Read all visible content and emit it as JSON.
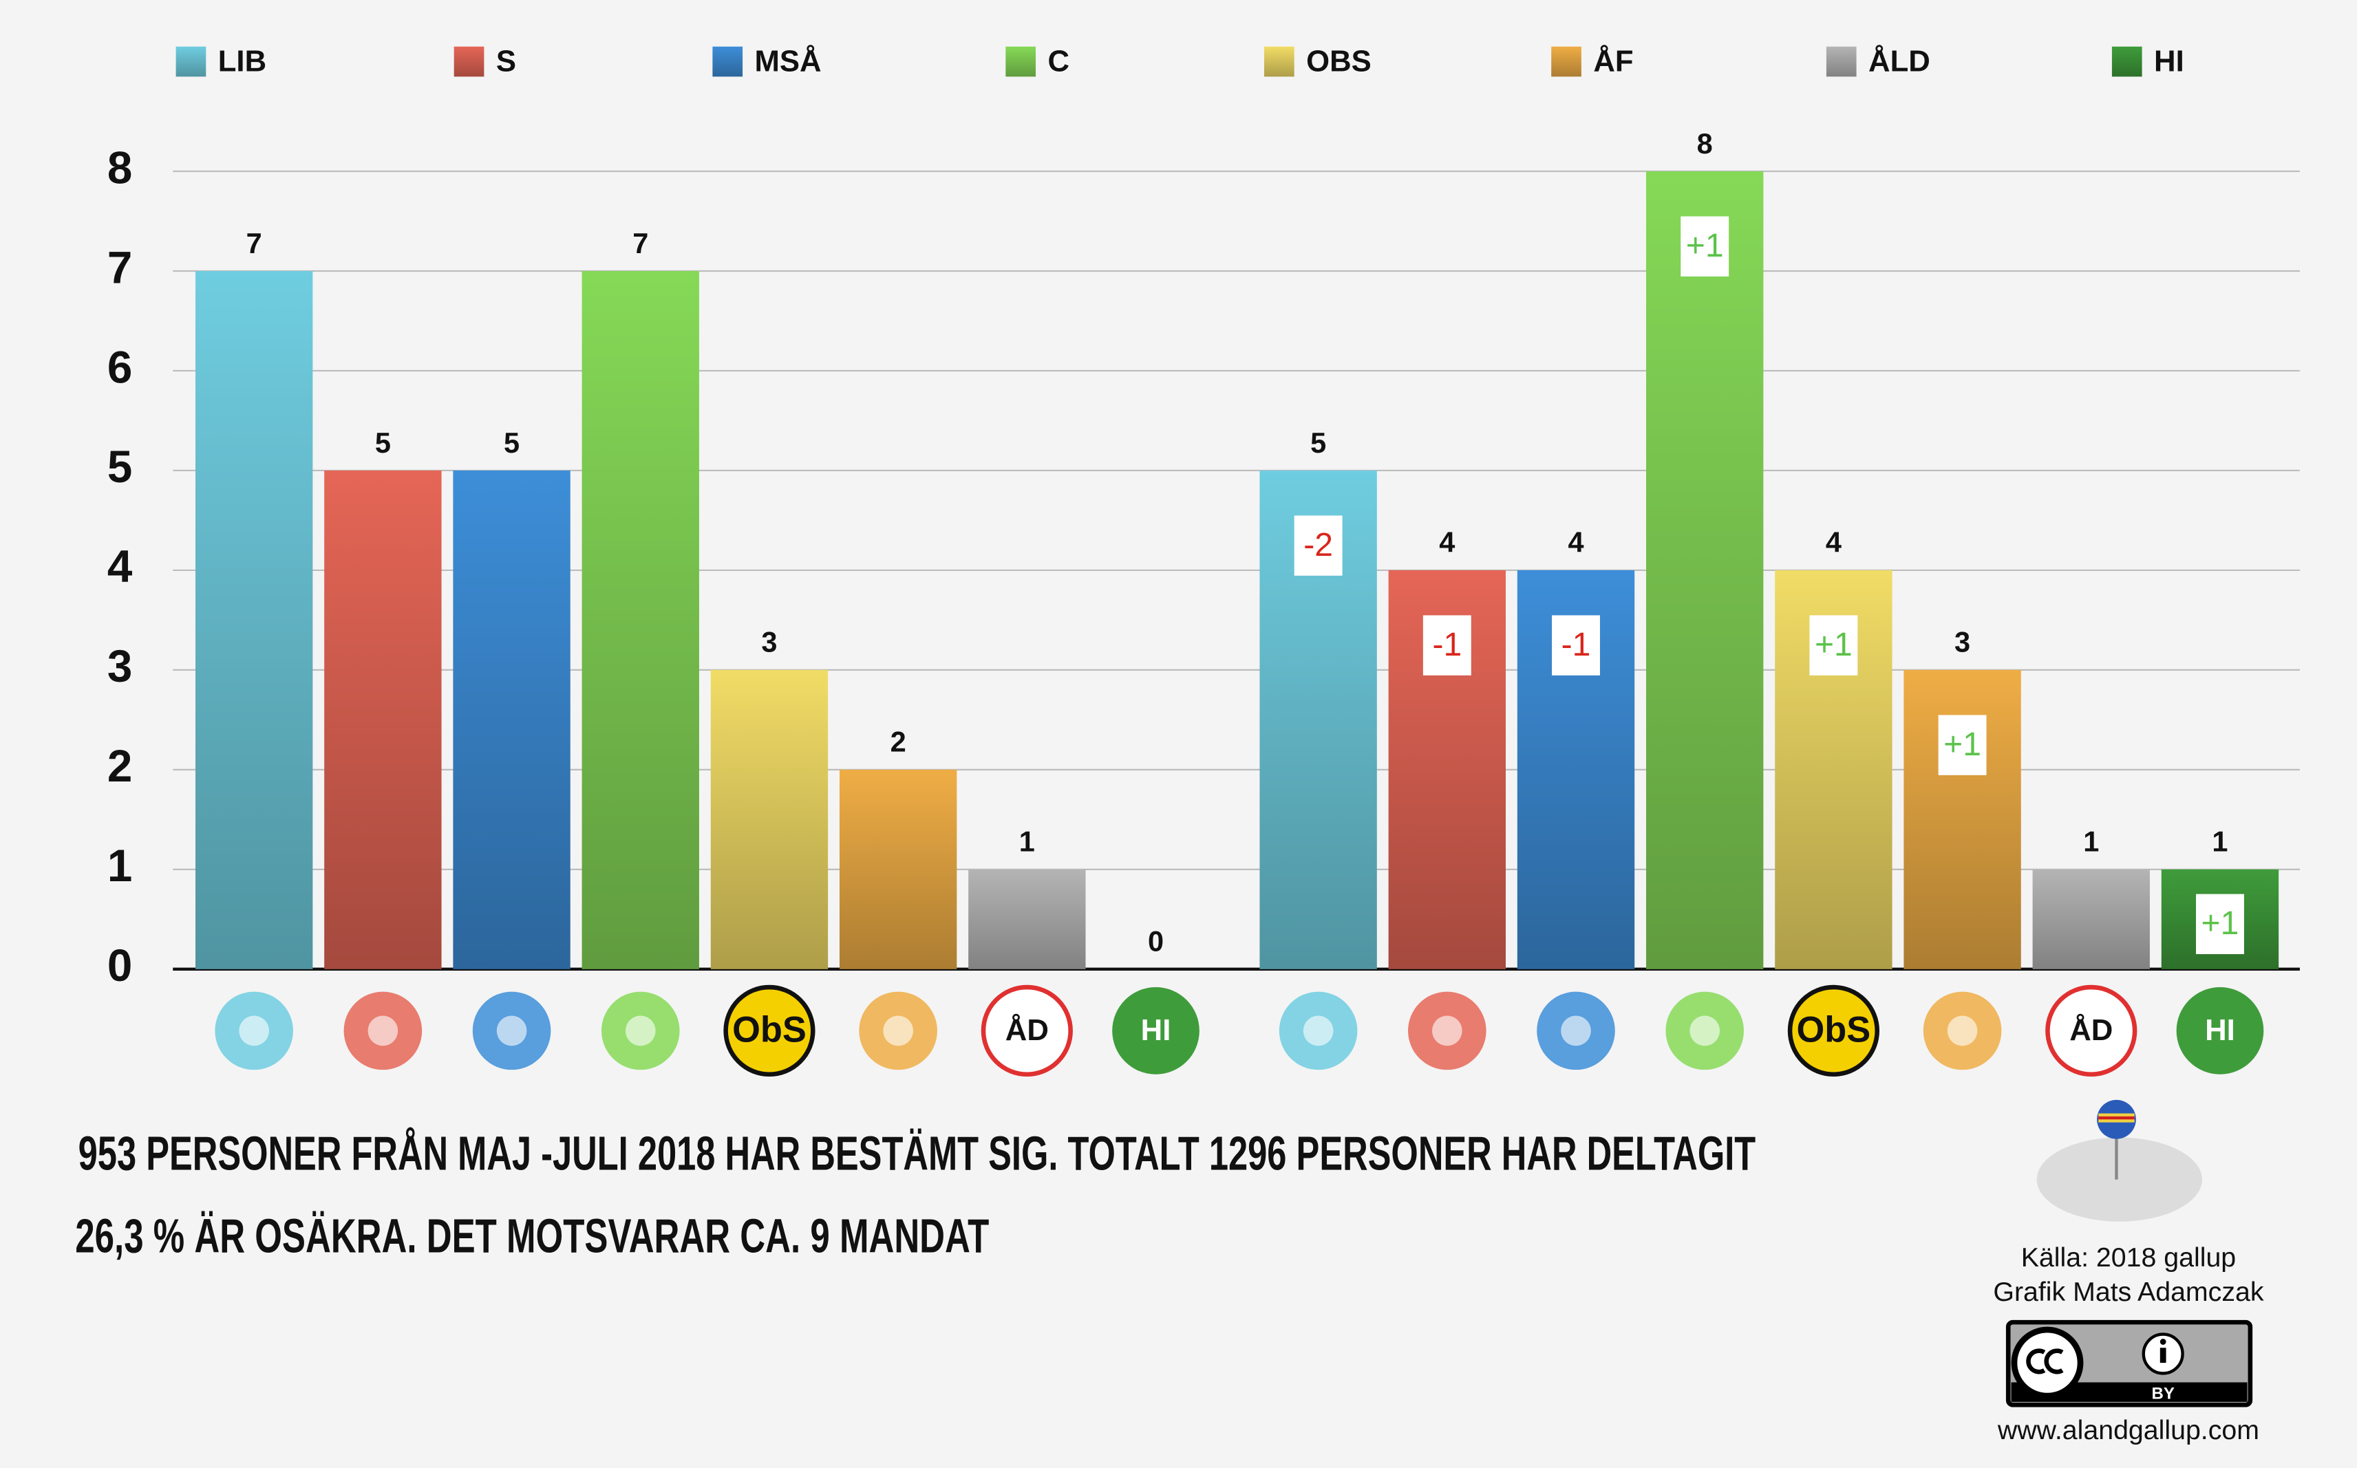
{
  "chart_data": {
    "type": "bar",
    "categories": [
      null,
      null
    ],
    "series": [
      {
        "name": "LIB",
        "color": "#6fcde0",
        "values": [
          7,
          5
        ],
        "change_labels": [
          null,
          "-2"
        ],
        "logo_text": null
      },
      {
        "name": "S",
        "color": "#e56656",
        "values": [
          5,
          4
        ],
        "change_labels": [
          null,
          "-1"
        ],
        "logo_text": null
      },
      {
        "name": "MSÅ",
        "color": "#3d8ed8",
        "values": [
          5,
          4
        ],
        "change_labels": [
          null,
          "-1"
        ],
        "logo_text": null
      },
      {
        "name": "C",
        "color": "#86d957",
        "values": [
          7,
          8
        ],
        "change_labels": [
          null,
          "+1"
        ],
        "logo_text": null
      },
      {
        "name": "OBS",
        "color": "#f1dc66",
        "values": [
          3,
          4
        ],
        "change_labels": [
          null,
          "+1"
        ],
        "logo_text": "ObS"
      },
      {
        "name": "ÅF",
        "color": "#efad45",
        "values": [
          2,
          3
        ],
        "change_labels": [
          null,
          "+1"
        ],
        "logo_text": null
      },
      {
        "name": "ÅLD",
        "color": "#b4b4b4",
        "values": [
          1,
          1
        ],
        "change_labels": [
          null,
          null
        ],
        "logo_text": "ÅD"
      },
      {
        "name": "HI",
        "color": "#3f9c3b",
        "values": [
          0,
          1
        ],
        "change_labels": [
          null,
          "+1"
        ],
        "logo_text": "HI"
      }
    ],
    "ylim": [
      0,
      8
    ],
    "yticks": [
      0,
      1,
      2,
      3,
      4,
      5,
      6,
      7,
      8
    ],
    "grid": true,
    "notes": [
      "953 PERSONER FRÅN MAJ -JULI 2018 HAR BESTÄMT SIG. TOTALT 1296 PERSONER HAR DELTAGIT",
      "26,3 % ÄR OSÄKRA. DET MOTSVARAR CA. 9 MANDAT"
    ],
    "source": [
      "Källa: 2018 gallup",
      "Grafik Mats Adamczak"
    ],
    "license": "BY",
    "website": "www.alandgallup.com"
  }
}
